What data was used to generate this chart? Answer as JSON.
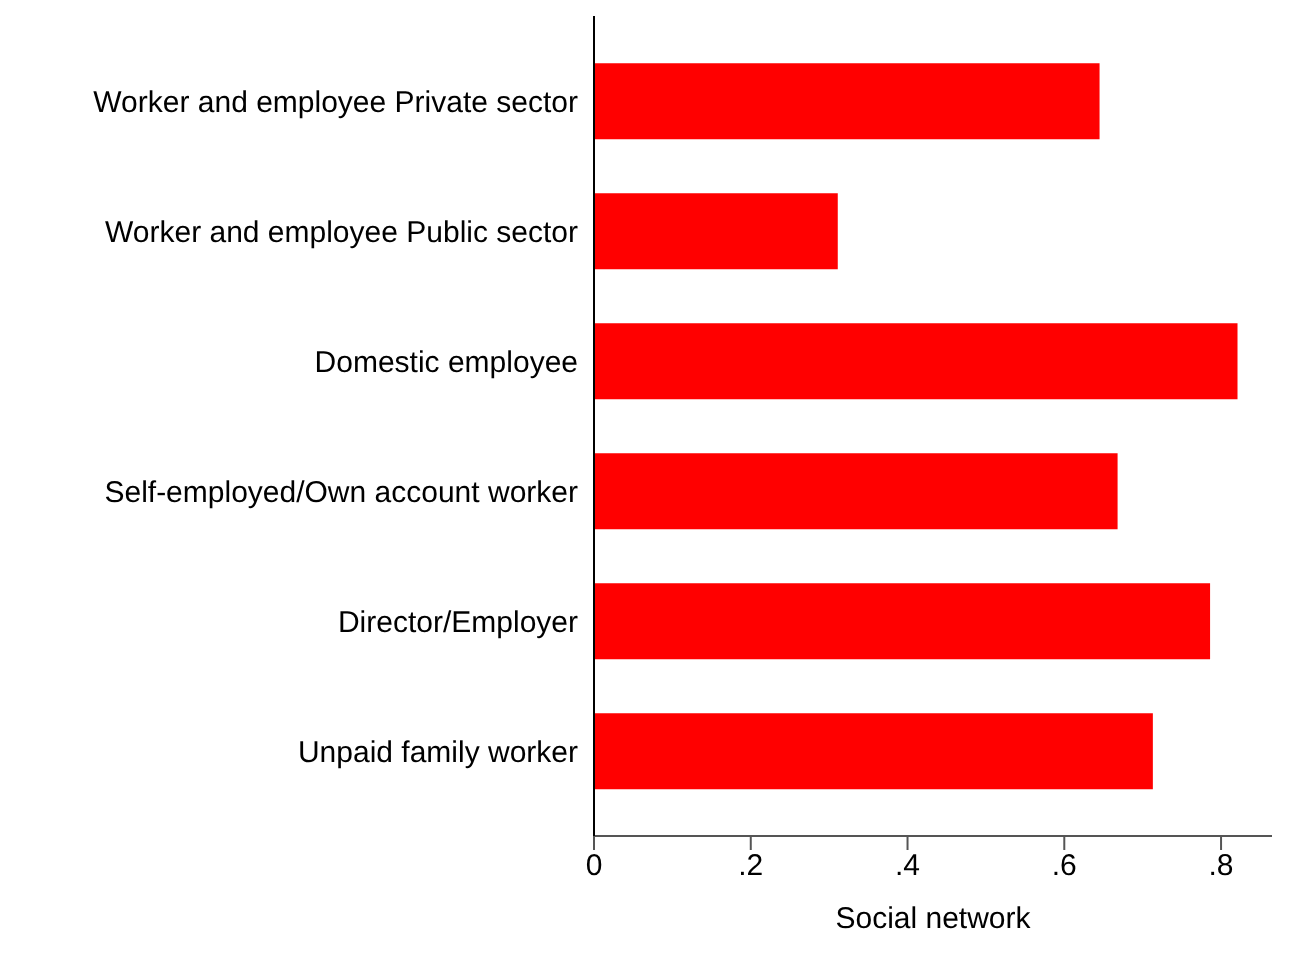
{
  "chart_data": {
    "type": "bar",
    "orientation": "horizontal",
    "xlabel": "Social network",
    "categories": [
      "Worker and employee Private sector",
      "Worker and employee Public sector",
      "Domestic employee",
      "Self-employed/Own account worker",
      "Director/Employer",
      "Unpaid family worker"
    ],
    "values": [
      0.645,
      0.311,
      0.821,
      0.668,
      0.786,
      0.713
    ],
    "color": "#ff0000",
    "xlim": [
      0,
      0.865
    ],
    "xticks": [
      {
        "value": 0,
        "label": "0"
      },
      {
        "value": 0.2,
        "label": ".2"
      },
      {
        "value": 0.4,
        "label": ".4"
      },
      {
        "value": 0.6,
        "label": ".6"
      },
      {
        "value": 0.8,
        "label": ".8"
      }
    ],
    "grid": false
  }
}
